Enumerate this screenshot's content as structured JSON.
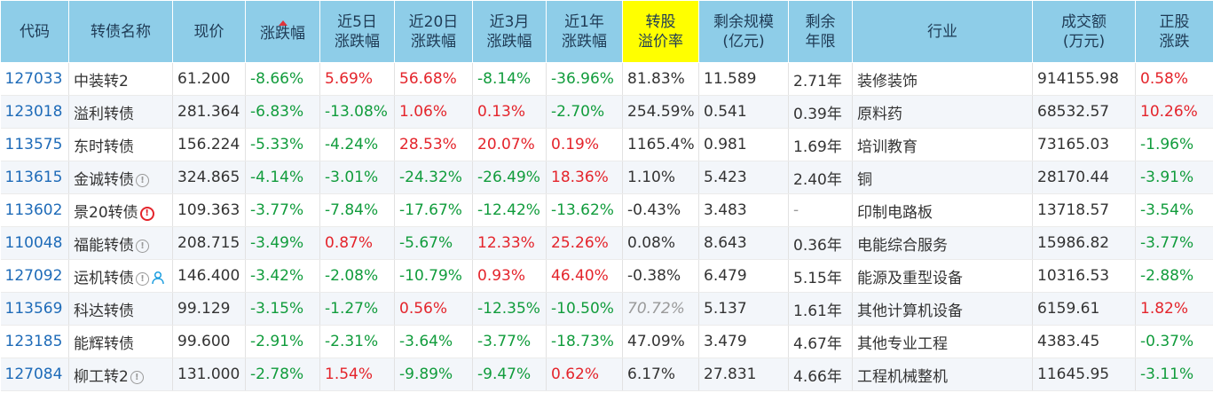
{
  "headers": [
    {
      "label": "代码"
    },
    {
      "label": "转债名称"
    },
    {
      "label": "现价"
    },
    {
      "label": "涨跌幅",
      "sorted": "desc"
    },
    {
      "label": "近5日\n涨跌幅"
    },
    {
      "label": "近20日\n涨跌幅"
    },
    {
      "label": "近3月\n涨跌幅"
    },
    {
      "label": "近1年\n涨跌幅"
    },
    {
      "label": "转股\n溢价率",
      "highlight": "#ffff00"
    },
    {
      "label": "剩余规模\n(亿元)"
    },
    {
      "label": "剩余\n年限"
    },
    {
      "label": "行业"
    },
    {
      "label": "成交额\n(万元)"
    },
    {
      "label": "正股\n涨跌"
    }
  ],
  "colors": {
    "up": "#e4242b",
    "down": "#119c3c",
    "code": "#1e6bb8",
    "header_bg": "#8ecde8"
  },
  "rows": [
    {
      "code": "127033",
      "name": "中装转2",
      "icons": [],
      "price": "61.200",
      "chg": "-8.66%",
      "chg5d": "5.69%",
      "chg20d": "56.68%",
      "chg3m": "-8.14%",
      "chg1y": "-36.96%",
      "premium": "81.83%",
      "scale": "11.589",
      "years": "2.71年",
      "industry": "装修装饰",
      "amount": "914155.98",
      "stock_chg": "0.58%"
    },
    {
      "code": "123018",
      "name": "溢利转债",
      "icons": [],
      "price": "281.364",
      "chg": "-6.83%",
      "chg5d": "-13.08%",
      "chg20d": "1.06%",
      "chg3m": "0.13%",
      "chg1y": "-2.70%",
      "premium": "254.59%",
      "scale": "0.541",
      "years": "0.39年",
      "industry": "原料药",
      "amount": "68532.57",
      "stock_chg": "10.26%"
    },
    {
      "code": "113575",
      "name": "东时转债",
      "icons": [],
      "price": "156.224",
      "chg": "-5.33%",
      "chg5d": "-4.24%",
      "chg20d": "28.53%",
      "chg3m": "20.07%",
      "chg1y": "0.19%",
      "premium": "1165.4%",
      "scale": "0.981",
      "years": "1.69年",
      "industry": "培训教育",
      "amount": "73165.03",
      "stock_chg": "-1.96%"
    },
    {
      "code": "113615",
      "name": "金诚转债",
      "icons": [
        "info-icon"
      ],
      "price": "324.865",
      "chg": "-4.14%",
      "chg5d": "-3.01%",
      "chg20d": "-24.32%",
      "chg3m": "-26.49%",
      "chg1y": "18.36%",
      "premium": "1.10%",
      "scale": "5.423",
      "years": "2.40年",
      "industry": "铜",
      "amount": "28170.44",
      "stock_chg": "-3.91%"
    },
    {
      "code": "113602",
      "name": "景20转债",
      "icons": [
        "warning-icon"
      ],
      "price": "109.363",
      "chg": "-3.77%",
      "chg5d": "-7.84%",
      "chg20d": "-17.67%",
      "chg3m": "-12.42%",
      "chg1y": "-13.62%",
      "premium": "-0.43%",
      "scale": "3.483",
      "years": "-",
      "industry": "印制电路板",
      "amount": "13718.57",
      "stock_chg": "-3.54%"
    },
    {
      "code": "110048",
      "name": "福能转债",
      "icons": [
        "info-icon"
      ],
      "price": "208.715",
      "chg": "-3.49%",
      "chg5d": "0.87%",
      "chg20d": "-5.67%",
      "chg3m": "12.33%",
      "chg1y": "25.26%",
      "premium": "0.08%",
      "scale": "8.643",
      "years": "0.36年",
      "industry": "电能综合服务",
      "amount": "15986.82",
      "stock_chg": "-3.77%"
    },
    {
      "code": "127092",
      "name": "运机转债",
      "icons": [
        "info-icon",
        "person-icon"
      ],
      "price": "146.400",
      "chg": "-3.42%",
      "chg5d": "-2.08%",
      "chg20d": "-10.79%",
      "chg3m": "0.93%",
      "chg1y": "46.40%",
      "premium": "-0.38%",
      "scale": "6.479",
      "years": "5.15年",
      "industry": "能源及重型设备",
      "amount": "10316.53",
      "stock_chg": "-2.88%"
    },
    {
      "code": "113569",
      "name": "科达转债",
      "icons": [],
      "price": "99.129",
      "chg": "-3.15%",
      "chg5d": "-1.27%",
      "chg20d": "0.56%",
      "chg3m": "-12.35%",
      "chg1y": "-10.50%",
      "premium": "70.72%",
      "premium_style": "gray-italic",
      "scale": "5.137",
      "years": "1.61年",
      "industry": "其他计算机设备",
      "amount": "6159.61",
      "stock_chg": "1.82%"
    },
    {
      "code": "123185",
      "name": "能辉转债",
      "icons": [],
      "price": "99.600",
      "chg": "-2.91%",
      "chg5d": "-2.31%",
      "chg20d": "-3.64%",
      "chg3m": "-3.77%",
      "chg1y": "-18.73%",
      "premium": "47.09%",
      "scale": "3.479",
      "years": "4.67年",
      "industry": "其他专业工程",
      "amount": "4383.45",
      "stock_chg": "-0.37%"
    },
    {
      "code": "127084",
      "name": "柳工转2",
      "icons": [
        "info-icon"
      ],
      "price": "131.000",
      "chg": "-2.78%",
      "chg5d": "1.54%",
      "chg20d": "-9.89%",
      "chg3m": "-9.47%",
      "chg1y": "0.62%",
      "premium": "6.17%",
      "scale": "27.831",
      "years": "4.66年",
      "industry": "工程机械整机",
      "amount": "11645.95",
      "stock_chg": "-3.11%"
    }
  ]
}
